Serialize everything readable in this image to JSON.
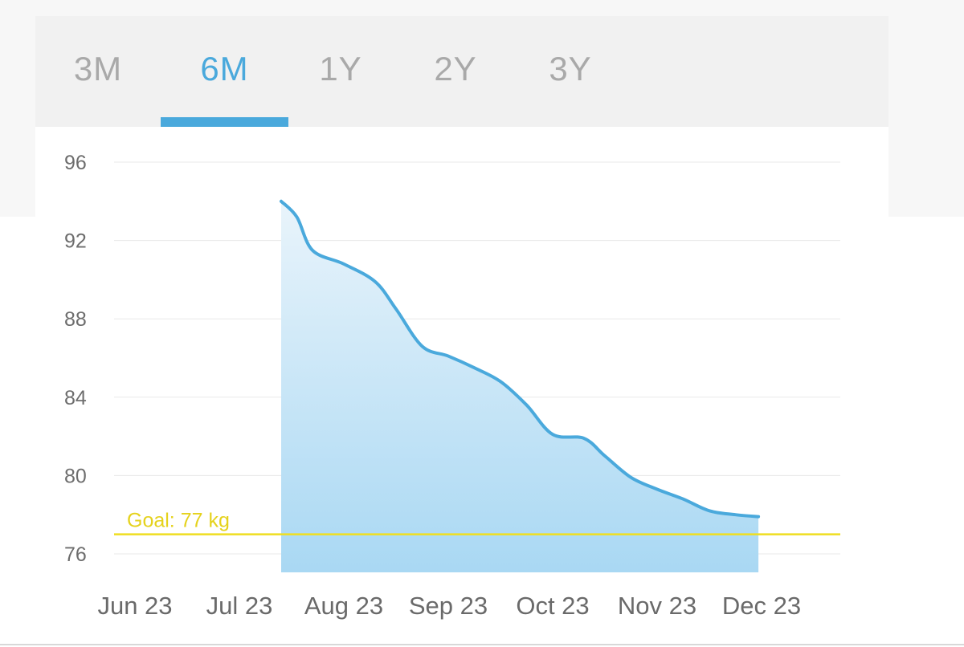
{
  "tabs": [
    {
      "label": "3M",
      "active": false
    },
    {
      "label": "6M",
      "active": true
    },
    {
      "label": "1Y",
      "active": false
    },
    {
      "label": "2Y",
      "active": false
    },
    {
      "label": "3Y",
      "active": false
    }
  ],
  "colors": {
    "accent": "#4aa9dc",
    "goal": "#efde20",
    "area_top": "#e9f4fb",
    "area_bottom": "#a9d8f3"
  },
  "chart_data": {
    "type": "area",
    "xlabel": "",
    "ylabel": "",
    "x_ticks": [
      "Jun 23",
      "Jul 23",
      "Aug 23",
      "Sep 23",
      "Oct 23",
      "Nov 23",
      "Dec 23"
    ],
    "y_ticks": [
      96,
      92,
      88,
      84,
      80,
      76
    ],
    "ylim": [
      75,
      96
    ],
    "grid": true,
    "goal": {
      "label": "Goal: 77 kg",
      "value": 77
    },
    "series": [
      {
        "x": [
          1.4,
          1.55,
          1.7,
          2.0,
          2.3,
          2.5,
          2.75,
          3.0,
          3.25,
          3.5,
          3.75,
          4.0,
          4.3,
          4.5,
          4.75,
          5.0,
          5.25,
          5.5,
          5.75,
          5.97
        ],
        "values": [
          94.0,
          93.2,
          91.5,
          90.8,
          89.9,
          88.5,
          86.6,
          86.1,
          85.5,
          84.8,
          83.6,
          82.1,
          81.9,
          81.0,
          79.9,
          79.3,
          78.8,
          78.2,
          78.0,
          77.9
        ]
      }
    ]
  }
}
